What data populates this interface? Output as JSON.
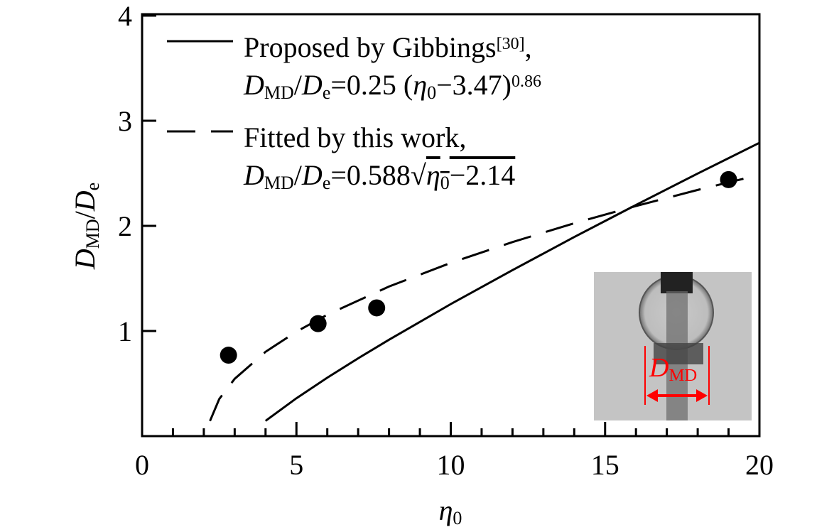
{
  "chart_data": {
    "type": "line",
    "xlabel": [
      {
        "t": "η",
        "s": "i"
      },
      {
        "t": "0",
        "s": "sub"
      }
    ],
    "ylabel": [
      {
        "t": "D",
        "s": "i"
      },
      {
        "t": "MD",
        "s": "sub"
      },
      {
        "t": "/",
        "s": "n"
      },
      {
        "t": "D",
        "s": "i"
      },
      {
        "t": "e",
        "s": "sub"
      }
    ],
    "xlim": [
      0,
      20
    ],
    "ylim": [
      0,
      4
    ],
    "xticks": [
      0,
      5,
      10,
      15,
      20
    ],
    "xminorticks": [
      1,
      2,
      3,
      4,
      6,
      7,
      8,
      9,
      11,
      12,
      13,
      14,
      16,
      17,
      18,
      19
    ],
    "yticks": [
      1,
      2,
      3,
      4
    ],
    "series": [
      {
        "legend": [
          [
            {
              "t": "Proposed by Gibbings",
              "s": "n"
            },
            {
              "t": "[30]",
              "s": "sup"
            },
            {
              "t": ",",
              "s": "n"
            }
          ],
          [
            {
              "t": "D",
              "s": "i"
            },
            {
              "t": "MD",
              "s": "sub"
            },
            {
              "t": "/",
              "s": "n"
            },
            {
              "t": "D",
              "s": "i"
            },
            {
              "t": "e",
              "s": "sub"
            },
            {
              "t": "=0.25 (",
              "s": "n"
            },
            {
              "t": "η",
              "s": "i"
            },
            {
              "t": "0",
              "s": "sub"
            },
            {
              "t": "−3.47)",
              "s": "n"
            },
            {
              "t": "0.86",
              "s": "sup"
            }
          ]
        ],
        "line": "solid",
        "color": "#000000",
        "x": [
          4,
          5,
          6,
          7,
          8,
          10,
          12,
          14,
          16,
          18,
          20
        ],
        "values": [
          0.145,
          0.36,
          0.556,
          0.74,
          0.917,
          1.256,
          1.579,
          1.894,
          2.199,
          2.498,
          2.79
        ]
      },
      {
        "legend": [
          [
            {
              "t": "Fitted by this work,",
              "s": "n"
            }
          ],
          [
            {
              "t": "D",
              "s": "i"
            },
            {
              "t": "MD",
              "s": "sub"
            },
            {
              "t": "/",
              "s": "n"
            },
            {
              "t": "D",
              "s": "i"
            },
            {
              "t": "e",
              "s": "sub"
            },
            {
              "t": "=0.588",
              "s": "n"
            },
            {
              "t": "√",
              "s": "n"
            },
            {
              "t": "η",
              "s": "iov"
            },
            {
              "t": "0",
              "s": "subov"
            },
            {
              "t": "−2.14",
              "s": "ov"
            }
          ]
        ],
        "line": "dashed",
        "color": "#000000",
        "x": [
          2.2,
          2.5,
          3,
          4,
          5,
          6,
          8,
          10,
          12,
          14,
          16,
          18,
          20
        ],
        "values": [
          0.144,
          0.353,
          0.545,
          0.802,
          0.994,
          1.155,
          1.423,
          1.648,
          1.846,
          2.025,
          2.189,
          2.342,
          2.485
        ]
      },
      {
        "line": "none",
        "marker": "circle",
        "color": "#000000",
        "x": [
          2.8,
          5.7,
          7.6,
          19.0
        ],
        "values": [
          0.77,
          1.07,
          1.22,
          2.44
        ]
      }
    ],
    "inset": {
      "label": [
        {
          "t": "D",
          "s": "i"
        },
        {
          "t": "MD",
          "s": "sub"
        }
      ],
      "color": "#ff0000"
    }
  }
}
